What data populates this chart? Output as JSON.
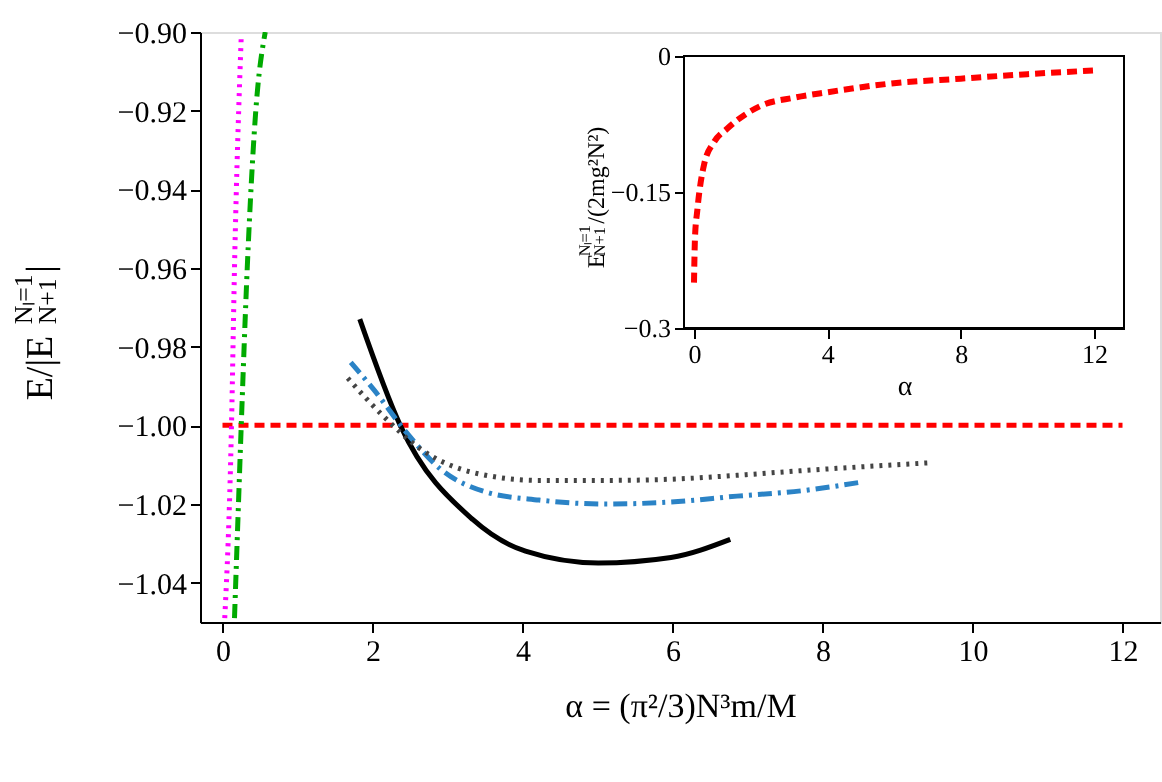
{
  "chart_data": [
    {
      "type": "line",
      "xlabel": "α = (π²/3)N³m/M",
      "ylabel": "E/|E$^{Nₗ=1}$$_{N+1}$|",
      "xlim": [
        -0.3,
        12.5
      ],
      "xticks": [
        0,
        2,
        4,
        6,
        8,
        10,
        12
      ],
      "ylim": [
        -1.05,
        -0.9
      ],
      "yticks": [
        {
          "value": -0.9,
          "label": "−0.90"
        },
        {
          "value": -0.92,
          "label": "−0.92"
        },
        {
          "value": -0.94,
          "label": "−0.94"
        },
        {
          "value": -0.96,
          "label": "−0.96"
        },
        {
          "value": -0.98,
          "label": "−0.98"
        },
        {
          "value": -1.0,
          "label": "−1.00"
        },
        {
          "value": -1.02,
          "label": "−1.02"
        },
        {
          "value": -1.04,
          "label": "−1.04"
        }
      ],
      "grid": false,
      "series": [
        {
          "color": "#ff0000",
          "line_style": "dashed",
          "x": [
            0,
            12
          ],
          "values": [
            -1.0,
            -1.0
          ]
        },
        {
          "color": "#000000",
          "line_style": "solid",
          "x": [
            1.83,
            2.37,
            3.34,
            4.04,
            5.01,
            5.98,
            6.77
          ],
          "values": [
            -0.973,
            -1.0,
            -1.024,
            -1.032,
            -1.035,
            -1.0336,
            -1.029
          ]
        },
        {
          "color": "#2b83c6",
          "line_style": "dashdot",
          "x": [
            1.71,
            2.02,
            2.46,
            2.9,
            3.52,
            4.22,
            5.1,
            5.98,
            6.86,
            7.74,
            8.53
          ],
          "values": [
            -0.984,
            -0.991,
            -1.002,
            -1.011,
            -1.017,
            -1.019,
            -1.02,
            -1.0195,
            -1.018,
            -1.0166,
            -1.0144
          ]
        },
        {
          "color": "#444444",
          "line_style": "dotted",
          "x": [
            1.67,
            2.11,
            2.64,
            3.34,
            4.22,
            5.1,
            5.98,
            6.86,
            7.74,
            9.45
          ],
          "values": [
            -0.988,
            -0.997,
            -1.006,
            -1.012,
            -1.014,
            -1.014,
            -1.0137,
            -1.0127,
            -1.0115,
            -1.0095
          ]
        },
        {
          "color": "#00aa00",
          "line_style": "dashdot",
          "x": [
            0.16,
            0.2,
            0.25,
            0.33,
            0.44,
            0.57
          ],
          "values": [
            -1.049,
            -1.027,
            -1.0,
            -0.96,
            -0.921,
            -0.9
          ]
        },
        {
          "color": "#ff00ff",
          "line_style": "dotted",
          "x": [
            0.03,
            0.12,
            0.16,
            0.25
          ],
          "values": [
            -1.049,
            -1.0,
            -0.96,
            -0.901
          ]
        }
      ]
    },
    {
      "type": "line",
      "xlabel": "α",
      "ylabel": "E$^{Nₗ=1}$$_{N+1}$/(2mg²N²)",
      "xlim": [
        -0.3,
        12.9
      ],
      "xticks": [
        0,
        4,
        8,
        12
      ],
      "ylim": [
        -0.3,
        0
      ],
      "yticks": [
        {
          "value": -0.3,
          "label": "−0.3"
        },
        {
          "value": -0.15,
          "label": "−0.15"
        },
        0
      ],
      "grid": false,
      "series": [
        {
          "color": "#ff0000",
          "line_style": "dashed",
          "x": [
            0,
            0.03,
            0.1,
            0.3,
            0.6,
            1,
            2,
            3,
            4,
            6,
            8,
            10,
            12
          ],
          "values": [
            -0.25,
            -0.2,
            -0.17,
            -0.12,
            -0.095,
            -0.08,
            -0.055,
            -0.046,
            -0.04,
            -0.03,
            -0.025,
            -0.02,
            -0.016
          ]
        }
      ]
    }
  ]
}
